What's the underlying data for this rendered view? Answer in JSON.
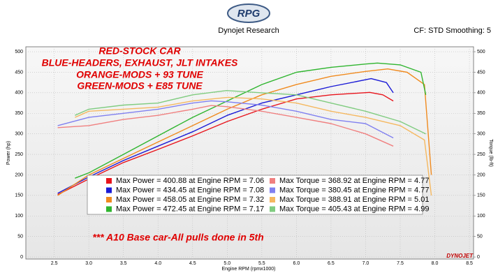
{
  "logo": "RPG",
  "brand": "DYNOJET",
  "chart_data": {
    "type": "line",
    "title": "Dynojet Research",
    "subtitle": "CF: STD Smoothing: 5",
    "x_label": "Engine RPM (rpmx1000)",
    "y_label": "Power (hp)",
    "y2_label": "Torque (lb-ft)",
    "annotations": [
      "RED-STOCK CAR",
      "BLUE-HEADERS, EXHAUST, JLT INTAKES",
      "ORANGE-MODS + 93 TUNE",
      "GREEN-MODS + E85 TUNE",
      "*** A10 Base car-All pulls done in 5th"
    ],
    "xlim": [
      2.09,
      8.56
    ],
    "xticks": [
      2.5,
      {
        "value": 3,
        "label": "3.0"
      },
      3.5,
      {
        "value": 4,
        "label": "4.0"
      },
      4.5,
      {
        "value": 5,
        "label": "5.0"
      },
      5.5,
      {
        "value": 6,
        "label": "6.0"
      },
      6.5,
      {
        "value": 7,
        "label": "7.0"
      },
      7.5,
      {
        "value": 8,
        "label": "8.0"
      },
      8.5
    ],
    "ylim": [
      -5,
      512
    ],
    "yticks": [
      0,
      50,
      100,
      150,
      200,
      250,
      300,
      350,
      400,
      450,
      500
    ],
    "y2lim": [
      -5,
      512
    ],
    "y2ticks": [
      0,
      50,
      100,
      150,
      200,
      250,
      300,
      350,
      400,
      450,
      500
    ],
    "grid": true,
    "series": [
      {
        "name": "Max Power = 400.88 at Engine RPM = 7.06",
        "color": "#e8141c",
        "x": [
          2.55,
          3.0,
          3.5,
          4.0,
          4.5,
          5.0,
          5.5,
          6.0,
          6.5,
          7.06,
          7.25,
          7.4
        ],
        "values": [
          152,
          190,
          230,
          262,
          295,
          330,
          360,
          385,
          395,
          400.88,
          395,
          380
        ]
      },
      {
        "name": "Max Power = 434.45 at Engine RPM = 7.08",
        "color": "#1a1ad6",
        "x": [
          2.55,
          3.0,
          3.5,
          4.0,
          4.5,
          5.0,
          5.5,
          6.0,
          6.5,
          7.08,
          7.3,
          7.4
        ],
        "values": [
          155,
          195,
          235,
          270,
          305,
          345,
          375,
          395,
          415,
          434.45,
          425,
          400
        ]
      },
      {
        "name": "Max Power = 458.05 at Engine RPM = 7.32",
        "color": "#f08a1e",
        "x": [
          2.55,
          3.0,
          3.5,
          4.0,
          4.5,
          5.0,
          5.5,
          6.0,
          6.5,
          7.0,
          7.32,
          7.6,
          7.85,
          7.95
        ],
        "values": [
          150,
          200,
          240,
          280,
          320,
          360,
          395,
          420,
          440,
          452,
          458.05,
          450,
          420,
          200
        ]
      },
      {
        "name": "Max Power = 472.45 at Engine RPM = 7.17",
        "color": "#2fb52f",
        "x": [
          2.8,
          3.0,
          3.5,
          4.0,
          4.5,
          5.0,
          5.5,
          6.0,
          6.5,
          7.0,
          7.17,
          7.5,
          7.8,
          7.87
        ],
        "values": [
          192,
          205,
          250,
          295,
          340,
          380,
          420,
          450,
          462,
          470,
          472.45,
          468,
          450,
          395
        ]
      },
      {
        "name": "Max Torque = 368.92 at Engine RPM = 4.77",
        "color": "#f08080",
        "axis": "y2",
        "x": [
          2.55,
          3.0,
          3.5,
          4.0,
          4.5,
          4.77,
          5.0,
          5.5,
          6.0,
          6.5,
          7.0,
          7.4
        ],
        "values": [
          315,
          320,
          335,
          345,
          360,
          368.92,
          366,
          355,
          340,
          325,
          300,
          270
        ]
      },
      {
        "name": "Max Torque = 380.45 at Engine RPM = 4.77",
        "color": "#8080f0",
        "axis": "y2",
        "x": [
          2.55,
          3.0,
          3.5,
          4.0,
          4.5,
          4.77,
          5.0,
          5.5,
          6.0,
          6.5,
          7.0,
          7.4
        ],
        "values": [
          320,
          340,
          350,
          360,
          375,
          380.45,
          378,
          370,
          355,
          335,
          325,
          290
        ]
      },
      {
        "name": "Max Torque = 388.91 at Engine RPM = 5.01",
        "color": "#f5b860",
        "axis": "y2",
        "x": [
          2.8,
          3.0,
          3.5,
          4.0,
          4.5,
          5.01,
          5.5,
          6.0,
          6.5,
          7.0,
          7.5,
          7.85,
          7.95
        ],
        "values": [
          340,
          355,
          360,
          365,
          380,
          388.91,
          385,
          375,
          355,
          340,
          320,
          285,
          150
        ]
      },
      {
        "name": "Max Torque = 405.43 at Engine RPM = 4.99",
        "color": "#80cc80",
        "axis": "y2",
        "x": [
          2.8,
          3.0,
          3.5,
          4.0,
          4.5,
          4.99,
          5.5,
          6.0,
          6.5,
          7.0,
          7.5,
          7.87
        ],
        "values": [
          345,
          360,
          370,
          375,
          395,
          405.43,
          400,
          395,
          375,
          355,
          330,
          300
        ]
      }
    ]
  }
}
